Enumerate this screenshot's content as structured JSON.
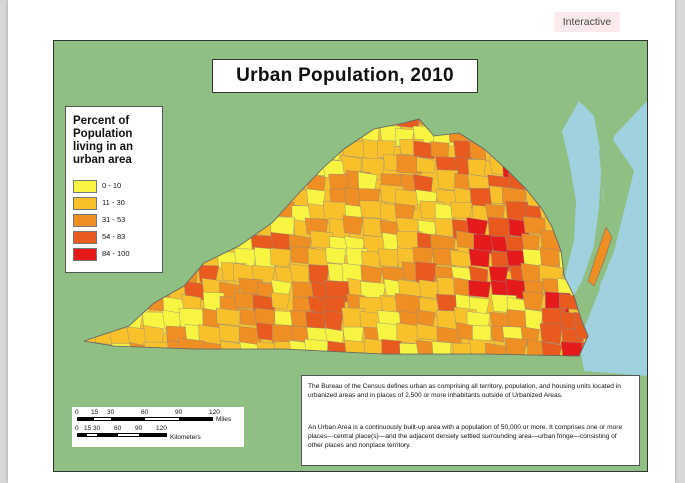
{
  "badge": {
    "label": "Interactive"
  },
  "map": {
    "title": "Urban Population, 2010",
    "colors": {
      "water": "#9fd1df",
      "land_outside": "#8fbf82",
      "border": "#8a8a8a"
    },
    "legend": {
      "title": "Percent of Population living in an urban area",
      "classes": [
        {
          "label": "0 - 10",
          "color": "#f7f542"
        },
        {
          "label": "11 - 30",
          "color": "#f8c12c"
        },
        {
          "label": "31 - 53",
          "color": "#ef8e22"
        },
        {
          "label": "54 - 83",
          "color": "#e85a1e"
        },
        {
          "label": "84 - 100",
          "color": "#e41b1a"
        }
      ]
    },
    "scale": {
      "miles_ticks": [
        "0",
        "15",
        "30",
        "60",
        "90",
        "120"
      ],
      "miles_unit": "Miles",
      "km_ticks": [
        "0",
        "15",
        "30",
        "60",
        "90",
        "120"
      ],
      "km_unit": "Kilometers"
    },
    "note": {
      "p1": "The Bureau of the Census defines urban as comprising all territory, population, and housing units located in urbanized areas and in places of 2,500 or more inhabitants outside of Urbanized Areas.",
      "p2": "An Urban Area is a continuously built-up area with a population of 50,000 or more.  It comprises one or more places—central place(s)—and the adjacent densely settled surrounding area—urban fringe—consisting of other places and nonplace territory."
    }
  }
}
